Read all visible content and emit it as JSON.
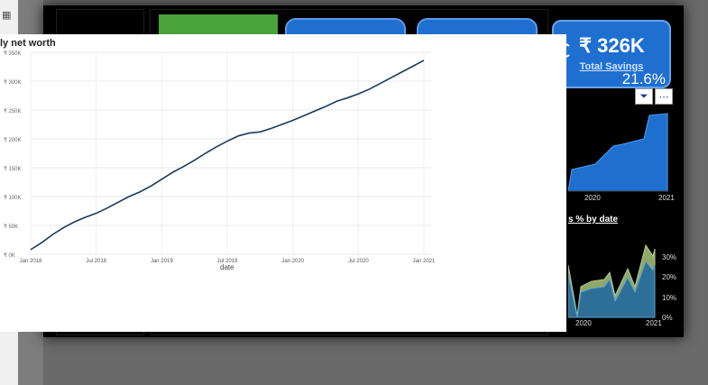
{
  "kpi": {
    "value": "₹ 326K",
    "label": "Total Savings",
    "percent": "21.6%"
  },
  "mini_charts": {
    "top": {
      "x_ticks": [
        "2020",
        "2021"
      ]
    },
    "bottom": {
      "title": "s % by date",
      "x_ticks": [
        "2020",
        "2021"
      ],
      "y_ticks": [
        "30%",
        "20%",
        "10%",
        "0%"
      ]
    }
  },
  "overlay": {
    "title": "ly net worth",
    "x_axis_label": "date"
  },
  "chart_data": {
    "type": "line",
    "title": "ly net worth",
    "xlabel": "date",
    "ylabel": "",
    "x_ticks": [
      "Jan 2018",
      "Jul 2018",
      "Jan 2019",
      "Jul 2019",
      "Jan 2020",
      "Jul 2020",
      "Jan 2021"
    ],
    "y_ticks": [
      "₹ 0K",
      "₹ 50K",
      "₹ 100K",
      "₹ 150K",
      "₹ 200K",
      "₹ 250K",
      "₹ 300K",
      "₹ 350K"
    ],
    "ylim": [
      0,
      350
    ],
    "x": [
      "2018-01",
      "2018-02",
      "2018-03",
      "2018-04",
      "2018-05",
      "2018-06",
      "2018-07",
      "2018-08",
      "2018-09",
      "2018-10",
      "2018-11",
      "2018-12",
      "2019-01",
      "2019-02",
      "2019-03",
      "2019-04",
      "2019-05",
      "2019-06",
      "2019-07",
      "2019-08",
      "2019-09",
      "2019-10",
      "2019-11",
      "2019-12",
      "2020-01",
      "2020-02",
      "2020-03",
      "2020-04",
      "2020-05",
      "2020-06",
      "2020-07",
      "2020-08",
      "2020-09",
      "2020-10",
      "2020-11",
      "2020-12",
      "2021-01"
    ],
    "values": [
      8,
      20,
      34,
      46,
      56,
      64,
      71,
      80,
      90,
      100,
      108,
      118,
      130,
      142,
      152,
      163,
      175,
      186,
      196,
      205,
      210,
      212,
      218,
      225,
      232,
      240,
      248,
      256,
      265,
      271,
      278,
      286,
      296,
      306,
      316,
      326,
      336
    ],
    "grid": true,
    "line_color": "#1b3a5c"
  }
}
